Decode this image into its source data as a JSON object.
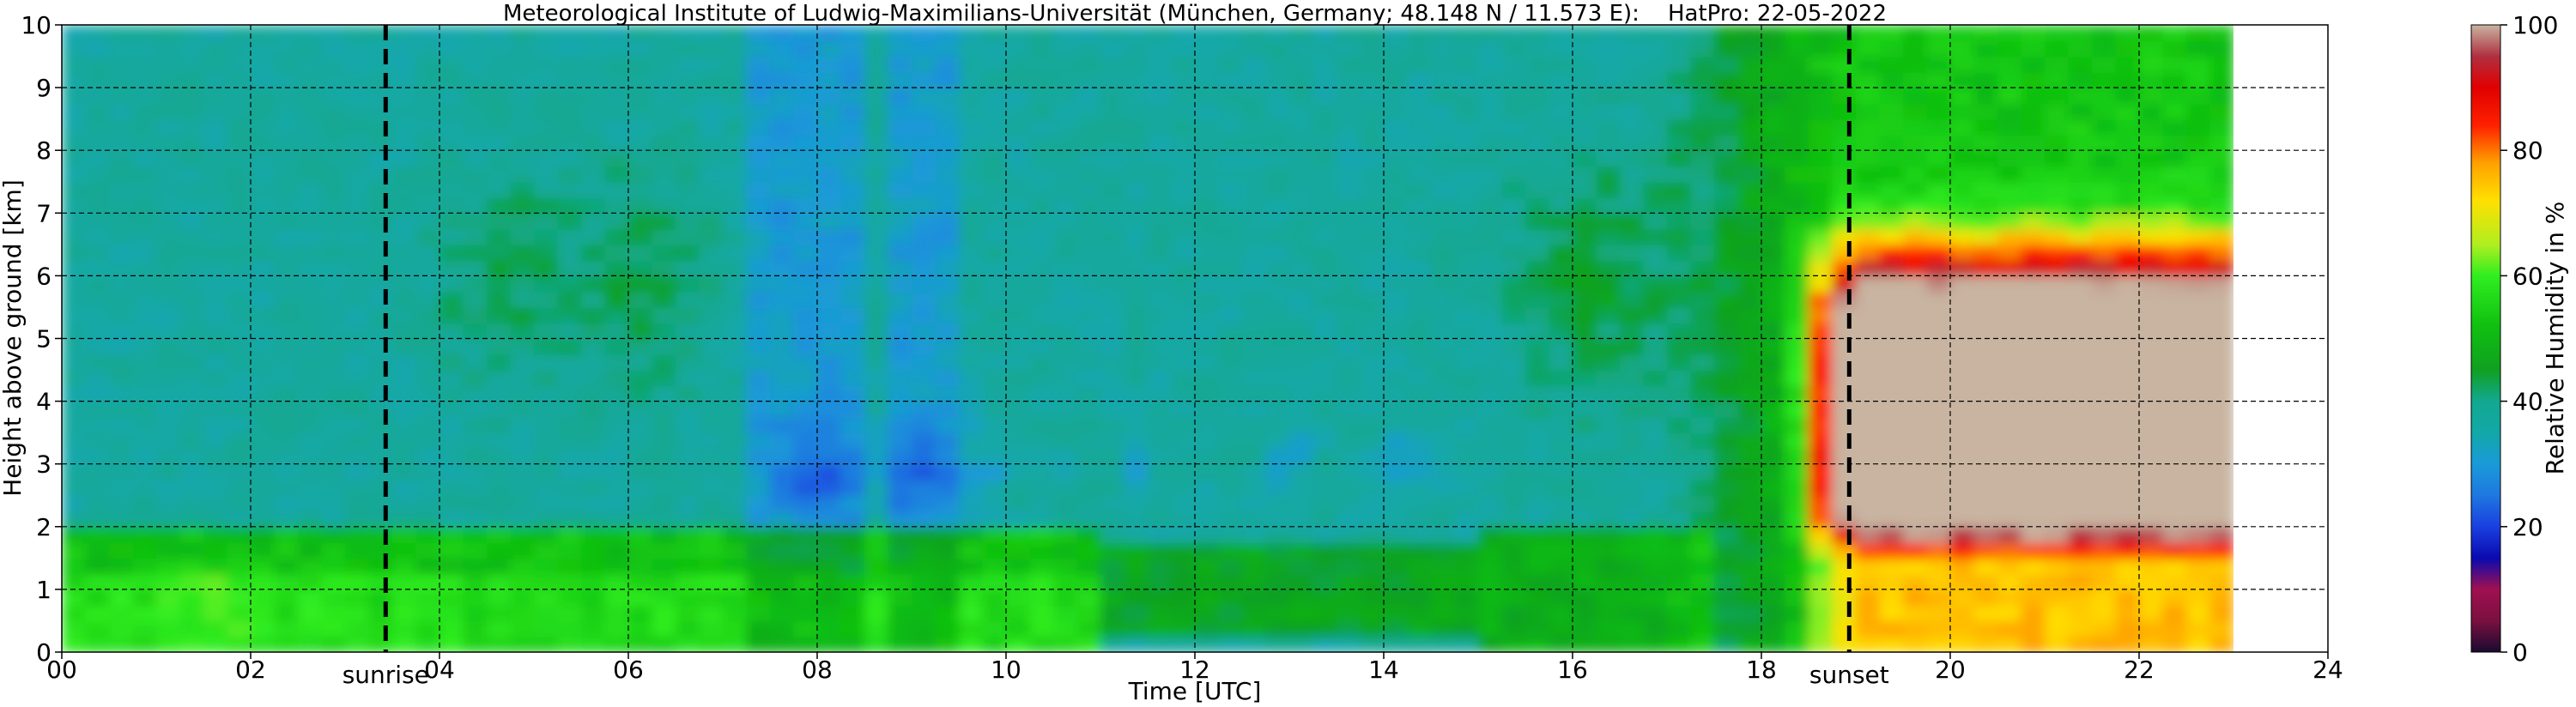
{
  "chart_data": {
    "type": "heatmap",
    "title": "Meteorological Institute of Ludwig-Maximilians-Universität (München, Germany; 48.148 N / 11.573 E):    HatPro: 22-05-2022",
    "xlabel": "Time [UTC]",
    "ylabel": "Height above ground [km]",
    "colorbar_label": "Relative Humidity in %",
    "xlim": [
      0,
      24
    ],
    "ylim": [
      0,
      10
    ],
    "x_ticks": [
      "00",
      "02",
      "04",
      "06",
      "08",
      "10",
      "12",
      "14",
      "16",
      "18",
      "20",
      "22",
      "24"
    ],
    "y_ticks": [
      "0",
      "1",
      "2",
      "3",
      "4",
      "5",
      "6",
      "7",
      "8",
      "9",
      "10"
    ],
    "colorbar_range": [
      0,
      100
    ],
    "colorbar_ticks": [
      "0",
      "20",
      "40",
      "60",
      "80",
      "100"
    ],
    "grid": true,
    "data_end_hour": 23.0,
    "events": [
      {
        "label": "sunrise",
        "hour": 3.43
      },
      {
        "label": "sunset",
        "hour": 18.93
      }
    ],
    "colormap": [
      {
        "value": 0,
        "color": "#1a0a30"
      },
      {
        "value": 5,
        "color": "#7a1040"
      },
      {
        "value": 10,
        "color": "#a01050"
      },
      {
        "value": 15,
        "color": "#0a0ab0"
      },
      {
        "value": 20,
        "color": "#1a40e0"
      },
      {
        "value": 25,
        "color": "#1e78e0"
      },
      {
        "value": 30,
        "color": "#1a9ad8"
      },
      {
        "value": 35,
        "color": "#12a8a8"
      },
      {
        "value": 40,
        "color": "#12a890"
      },
      {
        "value": 45,
        "color": "#10a020"
      },
      {
        "value": 52,
        "color": "#10c010"
      },
      {
        "value": 60,
        "color": "#30ee20"
      },
      {
        "value": 65,
        "color": "#b0ee20"
      },
      {
        "value": 72,
        "color": "#ffe000"
      },
      {
        "value": 78,
        "color": "#ffa000"
      },
      {
        "value": 84,
        "color": "#ff2000"
      },
      {
        "value": 90,
        "color": "#e00000"
      },
      {
        "value": 95,
        "color": "#b03040"
      },
      {
        "value": 100,
        "color": "#c8b4a0"
      }
    ]
  }
}
